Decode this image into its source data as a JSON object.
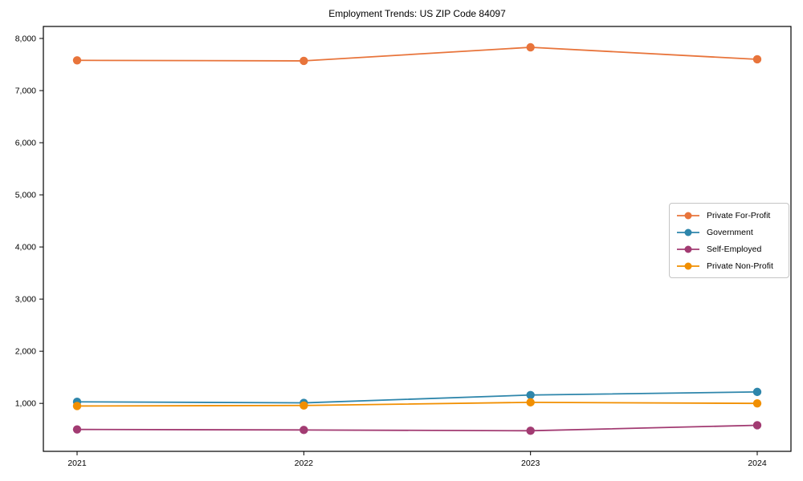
{
  "chart_data": {
    "type": "line",
    "title": "Employment Trends: US ZIP Code 84097",
    "xlabel": "",
    "ylabel": "",
    "x": [
      "2021",
      "2022",
      "2023",
      "2024"
    ],
    "yticks": [
      1000,
      2000,
      3000,
      4000,
      5000,
      6000,
      7000,
      8000
    ],
    "y_tick_labels": [
      "1,000",
      "2,000",
      "3,000",
      "4,000",
      "5,000",
      "6,000",
      "7,000",
      "8,000"
    ],
    "ylim": [
      80,
      8230
    ],
    "grid": false,
    "legend_position": "center-right",
    "marker": "circle",
    "axis_color": "#000000",
    "background_color": "#ffffff",
    "series": [
      {
        "name": "Private For-Profit",
        "color": "#E8743B",
        "values": [
          7580,
          7570,
          7830,
          7600
        ]
      },
      {
        "name": "Government",
        "color": "#2E86AB",
        "values": [
          1030,
          1010,
          1160,
          1220
        ]
      },
      {
        "name": "Self-Employed",
        "color": "#A23B72",
        "values": [
          500,
          490,
          475,
          580
        ]
      },
      {
        "name": "Private Non-Profit",
        "color": "#F18F01",
        "values": [
          950,
          960,
          1020,
          1000
        ]
      }
    ]
  }
}
